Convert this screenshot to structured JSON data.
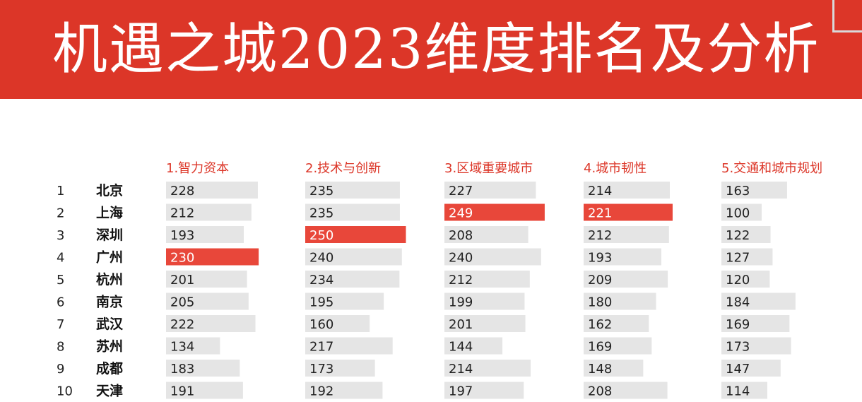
{
  "title": "机遇之城2023维度排名及分析",
  "colors": {
    "banner": "#dc3628",
    "bar": "#e5e5e5",
    "highlight": "#e8473a",
    "header_text": "#dc3628"
  },
  "chart_data": {
    "type": "table",
    "columns": [
      "1.智力资本",
      "2.技术与创新",
      "3.区域重要城市",
      "4.城市韧性",
      "5.交通和城市规划"
    ],
    "ranks": [
      "1",
      "2",
      "3",
      "4",
      "5",
      "6",
      "7",
      "8",
      "9",
      "10"
    ],
    "cities": [
      "北京",
      "上海",
      "深圳",
      "广州",
      "杭州",
      "南京",
      "武汉",
      "苏州",
      "成都",
      "天津"
    ],
    "series": [
      {
        "name": "1.智力资本",
        "values": [
          228,
          212,
          193,
          230,
          201,
          205,
          222,
          134,
          183,
          191
        ],
        "highlight_index": 3
      },
      {
        "name": "2.技术与创新",
        "values": [
          235,
          235,
          250,
          240,
          234,
          195,
          160,
          217,
          173,
          192
        ],
        "highlight_index": 2
      },
      {
        "name": "3.区域重要城市",
        "values": [
          227,
          249,
          208,
          240,
          212,
          199,
          201,
          144,
          214,
          197
        ],
        "highlight_index": 1
      },
      {
        "name": "4.城市韧性",
        "values": [
          214,
          221,
          212,
          193,
          209,
          180,
          162,
          169,
          148,
          208
        ],
        "highlight_index": 1
      },
      {
        "name": "5.交通和城市规划",
        "values": [
          163,
          100,
          122,
          127,
          120,
          184,
          169,
          173,
          147,
          114
        ],
        "highlight_index": null
      }
    ],
    "value_max": 250
  }
}
